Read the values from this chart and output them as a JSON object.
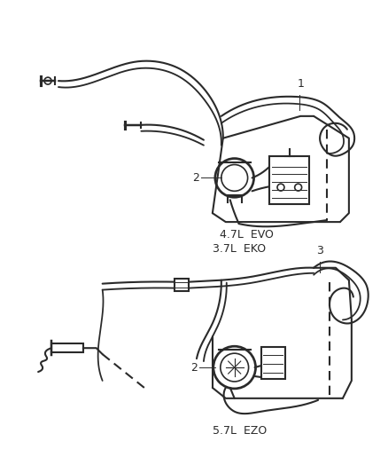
{
  "background_color": "#ffffff",
  "top_label1": "4.7L  EVO",
  "top_label2": "3.7L  EKO",
  "bottom_label": "5.7L  EZO",
  "label1": "1",
  "label2": "2",
  "label3": "3",
  "line_color": "#2a2a2a",
  "line_width": 1.5,
  "figsize": [
    4.38,
    5.33
  ],
  "dpi": 100
}
